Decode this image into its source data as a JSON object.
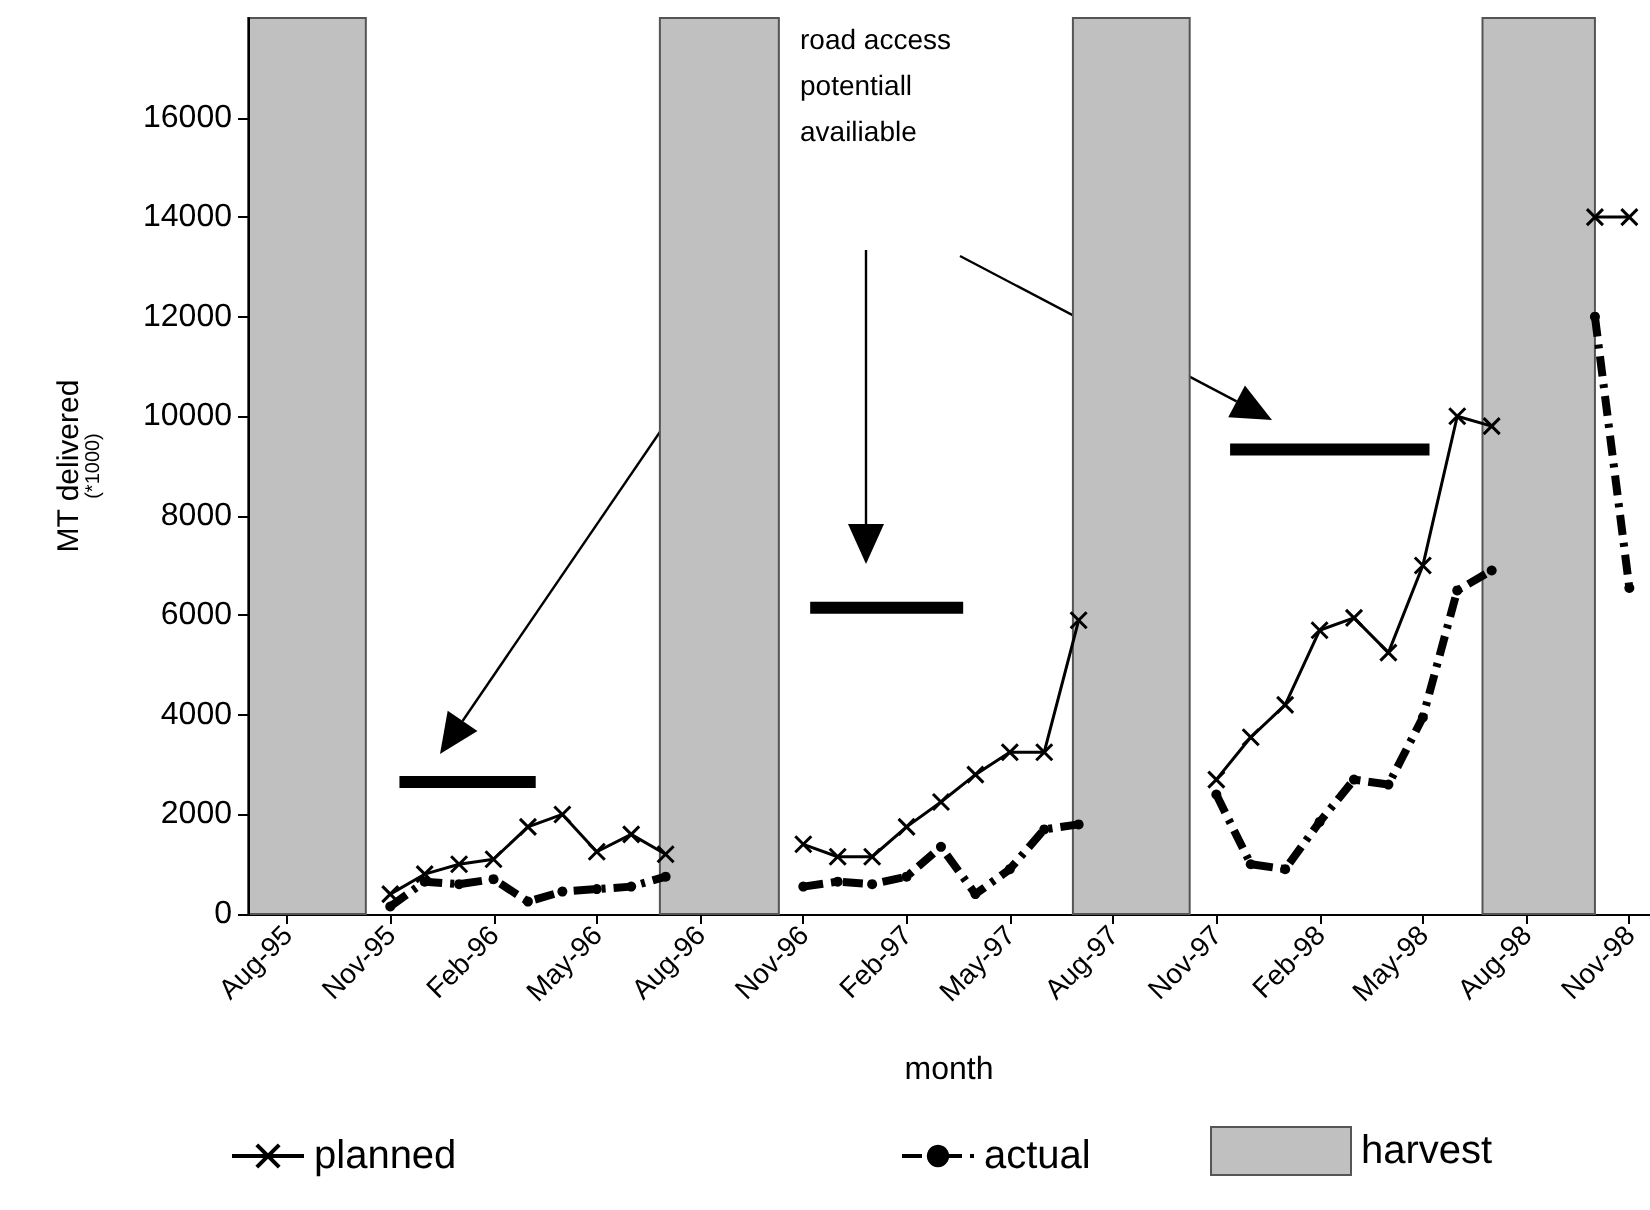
{
  "chart_data": {
    "type": "line",
    "xlabel": "month",
    "ylabel": "MT delivered\n(*1000)",
    "x": [
      "1995-11",
      "1995-12",
      "1996-01",
      "1996-02",
      "1996-03",
      "1996-04",
      "1996-05",
      "1996-06",
      "1996-07",
      "1996-08",
      "1996-09",
      "1996-10",
      "1996-11",
      "1996-12",
      "1997-01",
      "1997-02",
      "1997-03",
      "1997-04",
      "1997-05",
      "1997-06",
      "1997-07",
      "1997-08",
      "1997-09",
      "1997-10",
      "1997-11",
      "1997-12",
      "1998-01",
      "1998-02",
      "1998-03",
      "1998-04",
      "1998-05",
      "1998-06",
      "1998-07",
      "1998-08",
      "1998-09",
      "1998-10",
      "1998-11"
    ],
    "series": [
      {
        "name": "planned",
        "color": "#000000",
        "marker": "cross",
        "line_style": "solid",
        "values": [
          400,
          800,
          1000,
          1100,
          1750,
          2000,
          1250,
          1600,
          1200,
          null,
          null,
          null,
          1400,
          1150,
          1150,
          1750,
          2250,
          2800,
          3250,
          3250,
          5900,
          null,
          null,
          null,
          2700,
          3550,
          4200,
          5700,
          5950,
          5250,
          7000,
          10000,
          9800,
          null,
          null,
          14000,
          14000
        ]
      },
      {
        "name": "actual",
        "color": "#000000",
        "marker": "circle",
        "line_style": "dashed",
        "values": [
          150,
          650,
          600,
          700,
          250,
          450,
          500,
          550,
          750,
          null,
          null,
          null,
          550,
          650,
          600,
          750,
          1350,
          400,
          900,
          1700,
          1800,
          null,
          null,
          null,
          2400,
          1000,
          900,
          1850,
          2700,
          2600,
          3950,
          6500,
          6900,
          null,
          null,
          12000,
          6550
        ]
      },
      {
        "color": "#000000",
        "marker": "none",
        "line_style": "solid",
        "type": "line",
        "x": [
          "1995-11-09",
          "1996-03-08"
        ],
        "values": [
          2650,
          2650
        ]
      },
      {
        "color": "#000000",
        "marker": "none",
        "line_style": "solid",
        "type": "line",
        "x": [
          "1996-11-07",
          "1997-03-21"
        ],
        "values": [
          6150,
          6150
        ]
      },
      {
        "color": "#000000",
        "marker": "none",
        "line_style": "solid",
        "type": "line",
        "x": [
          "1997-11-13",
          "1998-05-07"
        ],
        "values": [
          9330,
          9330
        ]
      }
    ],
    "bands": [
      {
        "axis": "x",
        "from": "1995-06-27",
        "to": "1995-10-10",
        "label": "harvest",
        "color": "#c0c0c0"
      },
      {
        "axis": "x",
        "from": "1996-06-26",
        "to": "1996-10-10",
        "color": "#c0c0c0"
      },
      {
        "axis": "x",
        "from": "1997-06-26",
        "to": "1997-10-08",
        "color": "#c0c0c0"
      },
      {
        "axis": "x",
        "from": "1998-06-23",
        "to": "1998-10-01",
        "color": "#c0c0c0"
      }
    ],
    "annotations": [
      "road access\npotentiall\navailiable"
    ],
    "xlim": [
      "1995-06-27",
      "1998-11-19"
    ],
    "xticks": [
      {
        "value": "1995-08",
        "label": "Aug-95"
      },
      {
        "value": "1995-11",
        "label": "Nov-95"
      },
      {
        "value": "1996-02",
        "label": "Feb-96"
      },
      {
        "value": "1996-05",
        "label": "May-96"
      },
      {
        "value": "1996-08",
        "label": "Aug-96"
      },
      {
        "value": "1996-11",
        "label": "Nov-96"
      },
      {
        "value": "1997-02",
        "label": "Feb-97"
      },
      {
        "value": "1997-05",
        "label": "May-97"
      },
      {
        "value": "1997-08",
        "label": "Aug-97"
      },
      {
        "value": "1997-11",
        "label": "Nov-97"
      },
      {
        "value": "1998-02",
        "label": "Feb-98"
      },
      {
        "value": "1998-05",
        "label": "May-98"
      },
      {
        "value": "1998-08",
        "label": "Aug-98"
      },
      {
        "value": "1998-11",
        "label": "Nov-98"
      }
    ],
    "ylim": [
      0,
      18000
    ],
    "yticks": [
      0,
      2000,
      4000,
      6000,
      8000,
      10000,
      12000,
      14000,
      16000
    ],
    "grid": false,
    "legend": "bottom"
  }
}
